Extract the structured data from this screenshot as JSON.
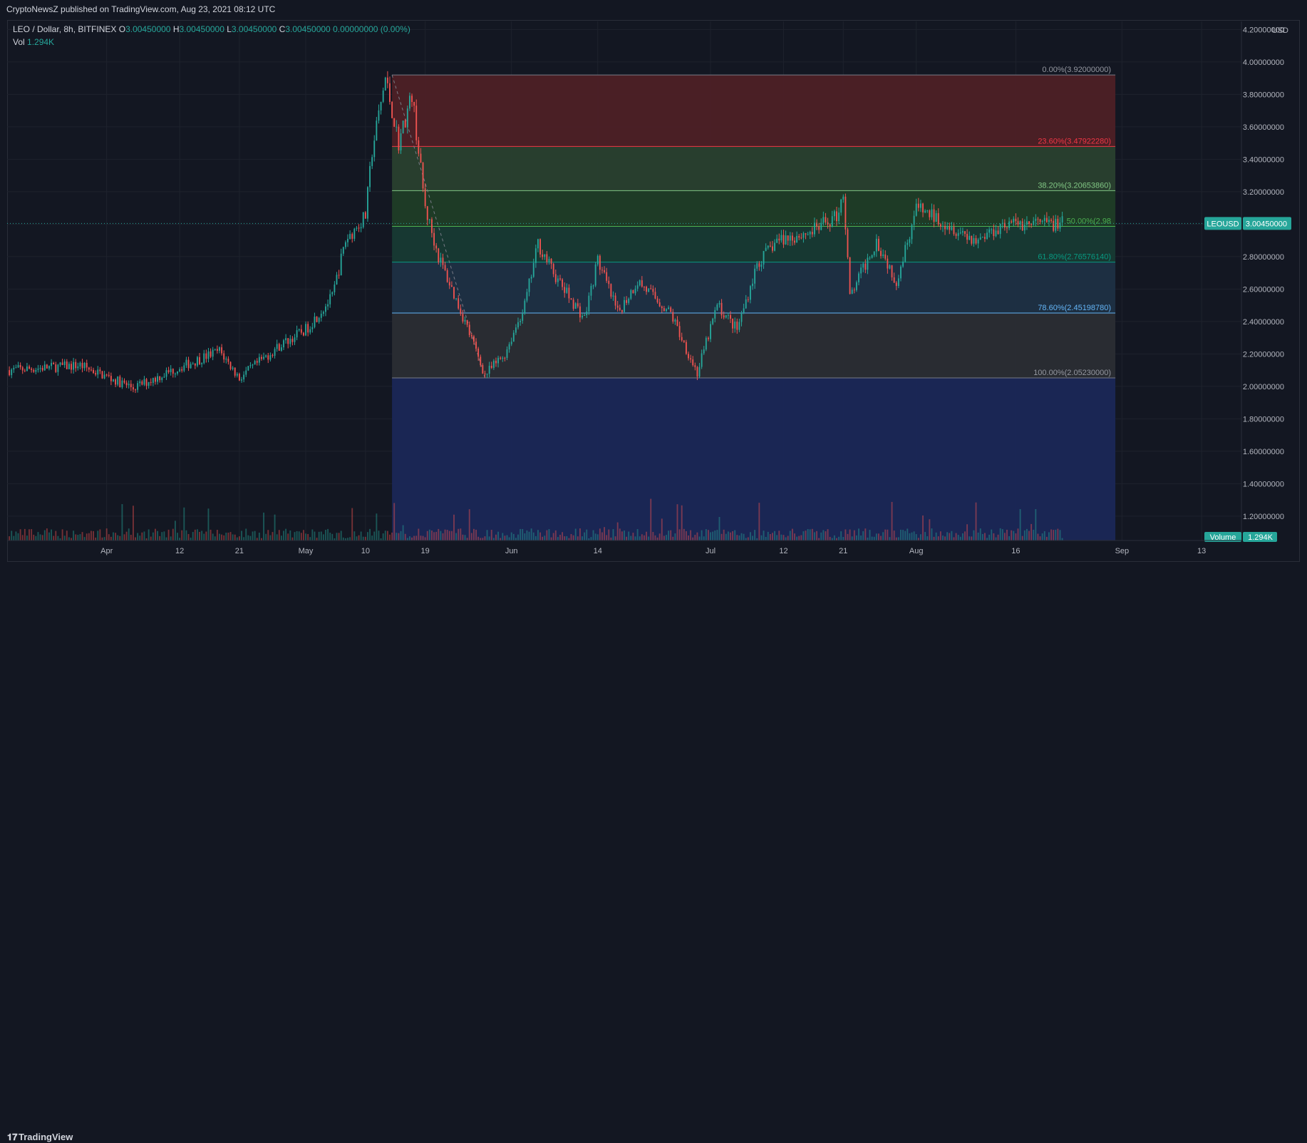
{
  "header": {
    "publisher": "CryptoNewsZ published on TradingView.com, Aug 23, 2021 08:12 UTC"
  },
  "legend": {
    "symbol": "LEO / Dollar, 8h, BITFINEX",
    "ohlc": [
      {
        "k": "O",
        "v": "3.00450000"
      },
      {
        "k": "H",
        "v": "3.00450000"
      },
      {
        "k": "L",
        "v": "3.00450000"
      },
      {
        "k": "C",
        "v": "3.00450000"
      }
    ],
    "change": "0.00000000 (0.00%)",
    "vol_label": "Vol",
    "vol_value": "1.294K"
  },
  "footer": {
    "brand": "TradingView"
  },
  "chart_data": {
    "type": "candlestick",
    "symbol": "LEOUSD",
    "currency": "USD",
    "last_price": 3.0045,
    "last_price_label": "3.00450000",
    "volume_label": "Volume",
    "volume_value": "1.294K",
    "ylim": [
      1.05,
      4.25
    ],
    "y_ticks": [
      1.2,
      1.4,
      1.6,
      1.8,
      2.0,
      2.2,
      2.4,
      2.6,
      2.8,
      3.0,
      3.2,
      3.4,
      3.6,
      3.8,
      4.0,
      4.2
    ],
    "y_tick_labels": [
      "1.20000000",
      "1.40000000",
      "1.60000000",
      "1.80000000",
      "2.00000000",
      "2.20000000",
      "2.40000000",
      "2.60000000",
      "2.80000000",
      "3.00000000",
      "3.20000000",
      "3.40000000",
      "3.60000000",
      "3.80000000",
      "4.00000000",
      "4.20000000"
    ],
    "x_range": [
      "2021-03-17",
      "2021-09-19"
    ],
    "x_ticks": [
      {
        "date": "2021-04-01",
        "label": "Apr"
      },
      {
        "date": "2021-04-12",
        "label": "12"
      },
      {
        "date": "2021-04-21",
        "label": "21"
      },
      {
        "date": "2021-05-01",
        "label": "May"
      },
      {
        "date": "2021-05-10",
        "label": "10"
      },
      {
        "date": "2021-05-19",
        "label": "19"
      },
      {
        "date": "2021-06-01",
        "label": "Jun"
      },
      {
        "date": "2021-06-14",
        "label": "14"
      },
      {
        "date": "2021-07-01",
        "label": "Jul"
      },
      {
        "date": "2021-07-12",
        "label": "12"
      },
      {
        "date": "2021-07-21",
        "label": "21"
      },
      {
        "date": "2021-08-01",
        "label": "Aug"
      },
      {
        "date": "2021-08-16",
        "label": "16"
      },
      {
        "date": "2021-09-01",
        "label": "Sep"
      },
      {
        "date": "2021-09-13",
        "label": "13"
      }
    ],
    "price_path": [
      {
        "date": "2021-03-17",
        "price": 2.1
      },
      {
        "date": "2021-03-28",
        "price": 2.13
      },
      {
        "date": "2021-04-05",
        "price": 1.99
      },
      {
        "date": "2021-04-11",
        "price": 2.1
      },
      {
        "date": "2021-04-18",
        "price": 2.22
      },
      {
        "date": "2021-04-21",
        "price": 2.05
      },
      {
        "date": "2021-04-27",
        "price": 2.25
      },
      {
        "date": "2021-05-01",
        "price": 2.35
      },
      {
        "date": "2021-05-05",
        "price": 2.55
      },
      {
        "date": "2021-05-07",
        "price": 2.9
      },
      {
        "date": "2021-05-10",
        "price": 3.05
      },
      {
        "date": "2021-05-11",
        "price": 3.45
      },
      {
        "date": "2021-05-13",
        "price": 3.9
      },
      {
        "date": "2021-05-15",
        "price": 3.5
      },
      {
        "date": "2021-05-17",
        "price": 3.8
      },
      {
        "date": "2021-05-19",
        "price": 3.1
      },
      {
        "date": "2021-05-21",
        "price": 2.8
      },
      {
        "date": "2021-05-25",
        "price": 2.4
      },
      {
        "date": "2021-05-28",
        "price": 2.07
      },
      {
        "date": "2021-05-31",
        "price": 2.2
      },
      {
        "date": "2021-06-03",
        "price": 2.5
      },
      {
        "date": "2021-06-05",
        "price": 2.88
      },
      {
        "date": "2021-06-08",
        "price": 2.65
      },
      {
        "date": "2021-06-12",
        "price": 2.42
      },
      {
        "date": "2021-06-14",
        "price": 2.78
      },
      {
        "date": "2021-06-17",
        "price": 2.45
      },
      {
        "date": "2021-06-20",
        "price": 2.65
      },
      {
        "date": "2021-06-25",
        "price": 2.45
      },
      {
        "date": "2021-06-29",
        "price": 2.08
      },
      {
        "date": "2021-07-02",
        "price": 2.5
      },
      {
        "date": "2021-07-05",
        "price": 2.35
      },
      {
        "date": "2021-07-08",
        "price": 2.75
      },
      {
        "date": "2021-07-11",
        "price": 2.9
      },
      {
        "date": "2021-07-16",
        "price": 2.95
      },
      {
        "date": "2021-07-20",
        "price": 3.05
      },
      {
        "date": "2021-07-21",
        "price": 3.2
      },
      {
        "date": "2021-07-22",
        "price": 2.55
      },
      {
        "date": "2021-07-26",
        "price": 2.9
      },
      {
        "date": "2021-07-29",
        "price": 2.65
      },
      {
        "date": "2021-08-01",
        "price": 3.1
      },
      {
        "date": "2021-08-05",
        "price": 3.02
      },
      {
        "date": "2021-08-10",
        "price": 2.9
      },
      {
        "date": "2021-08-14",
        "price": 3.0
      },
      {
        "date": "2021-08-23",
        "price": 3.0045
      }
    ],
    "fibonacci": {
      "start_date": "2021-05-14",
      "end_date": "2021-08-31",
      "high": 3.92,
      "low": 2.0523,
      "levels": [
        {
          "ratio": 0.0,
          "price": 3.92,
          "label": "0.00%(3.92000000)",
          "line": "#787b86",
          "fill": "#4d2026"
        },
        {
          "ratio": 0.236,
          "price": 3.4792228,
          "label": "23.60%(3.47922280)",
          "line": "#f23645",
          "fill": "#29402f"
        },
        {
          "ratio": 0.382,
          "price": 3.2065386,
          "label": "38.20%(3.20653860)",
          "line": "#81c784",
          "fill": "#1f3d27"
        },
        {
          "ratio": 0.5,
          "price": 2.98615,
          "label": "50.00%(2.98",
          "line": "#4caf50",
          "fill": "#173a34"
        },
        {
          "ratio": 0.618,
          "price": 2.7657614,
          "label": "61.80%(2.76576140)",
          "line": "#089981",
          "fill": "#1e3045"
        },
        {
          "ratio": 0.786,
          "price": 2.4519878,
          "label": "78.60%(2.45198780)",
          "line": "#64b5f6",
          "fill": "#2a2d34"
        },
        {
          "ratio": 1.0,
          "price": 2.0523,
          "label": "100.00%(2.05230000)",
          "line": "#787b86",
          "fill": "#1a2757"
        }
      ]
    },
    "colors": {
      "up": "#26a69a",
      "down": "#ef5350",
      "background": "#131722",
      "grid": "#1e222d",
      "axis_text": "#b2b5be"
    }
  }
}
